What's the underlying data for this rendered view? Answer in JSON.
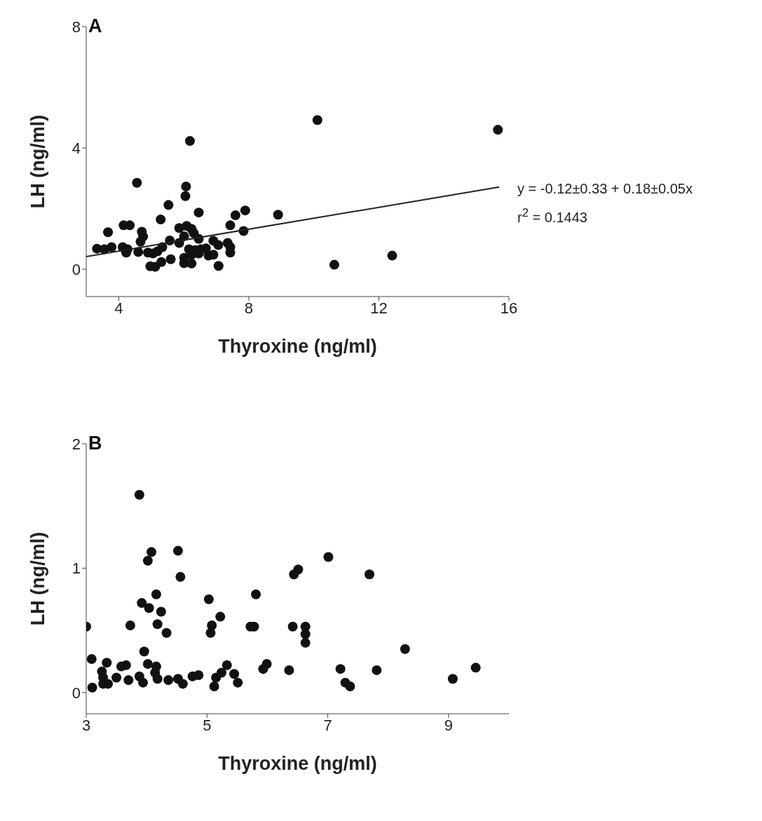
{
  "chart_data": [
    {
      "type": "scatter",
      "title": "A",
      "xlabel": "Thyroxine (ng/ml)",
      "ylabel": "LH (ng/ml)",
      "xlim": [
        3,
        16
      ],
      "ylim": [
        -0.9,
        8
      ],
      "xticks": [
        4,
        8,
        12,
        16
      ],
      "yticks": [
        0,
        4,
        8
      ],
      "grid": false,
      "marker": "circle",
      "annotations": [
        "y = -0.12±0.33 + 0.18±0.05x",
        "r$^{2}$ = 0.1443"
      ],
      "series": [
        {
          "color": "#111111",
          "x": [
            4.56,
            6.07,
            6.05,
            5.53,
            6.46,
            7.59,
            7.89,
            8.9,
            5.29,
            4.15,
            4.34,
            3.67,
            4.71,
            7.43,
            7.84,
            5.86,
            6.09,
            6.24,
            6.31,
            6.01,
            4.75,
            5.57,
            6.46,
            4.67,
            3.33,
            3.56,
            3.78,
            4.12,
            4.27,
            4.23,
            4.6,
            4.9,
            5.05,
            5.19,
            5.34,
            5.86,
            6.91,
            7.06,
            7.35,
            7.43,
            6.16,
            6.35,
            6.53,
            6.68,
            6.24,
            6.46,
            6.76,
            6.91,
            7.43,
            5.6,
            6.01,
            4.97,
            5.12,
            5.31,
            6.01,
            6.24,
            7.07,
            10.11,
            15.66,
            10.63,
            12.41,
            6.19
          ],
          "values": [
            2.85,
            2.73,
            2.41,
            2.12,
            1.87,
            1.78,
            1.94,
            1.8,
            1.64,
            1.45,
            1.45,
            1.22,
            1.24,
            1.45,
            1.26,
            1.36,
            1.43,
            1.33,
            1.19,
            1.09,
            1.08,
            0.95,
            1.0,
            0.91,
            0.68,
            0.66,
            0.73,
            0.73,
            0.66,
            0.55,
            0.57,
            0.55,
            0.52,
            0.59,
            0.73,
            0.87,
            0.94,
            0.8,
            0.87,
            0.73,
            0.66,
            0.63,
            0.66,
            0.69,
            0.48,
            0.52,
            0.45,
            0.48,
            0.55,
            0.33,
            0.38,
            0.1,
            0.08,
            0.24,
            0.2,
            0.19,
            0.11,
            4.92,
            4.6,
            0.15,
            0.45,
            4.23
          ]
        },
        {
          "type": "line",
          "marker": "none",
          "color": "#222222",
          "x": [
            3,
            15.7
          ],
          "values": [
            0.42,
            2.71
          ]
        }
      ]
    },
    {
      "type": "scatter",
      "title": "B",
      "xlabel": "Thyroxine (ng/ml)",
      "ylabel": "LH (ng/ml)",
      "xlim": [
        3,
        10
      ],
      "ylim": [
        -0.17,
        2
      ],
      "xticks": [
        3,
        5,
        7,
        9
      ],
      "yticks": [
        0,
        1,
        2
      ],
      "grid": false,
      "marker": "circle",
      "series": [
        {
          "color": "#111111",
          "x": [
            3.88,
            4.08,
            4.02,
            4.52,
            4.56,
            4.16,
            5.03,
            5.81,
            3.92,
            4.04,
            4.24,
            5.22,
            3.0,
            3.73,
            4.18,
            4.33,
            5.08,
            5.06,
            5.72,
            5.78,
            3.96,
            3.09,
            3.34,
            3.58,
            3.66,
            3.26,
            3.28,
            3.36,
            3.28,
            3.5,
            3.7,
            3.88,
            3.94,
            4.02,
            4.16,
            4.14,
            4.18,
            4.36,
            4.52,
            4.6,
            4.76,
            4.86,
            3.1,
            5.15,
            5.12,
            5.24,
            5.33,
            5.45,
            5.51,
            7.01,
            6.51,
            6.44,
            7.69,
            6.42,
            6.63,
            6.63,
            6.63,
            8.28,
            5.99,
            5.93,
            6.36,
            7.21,
            7.29,
            7.37,
            7.81,
            9.07,
            9.45
          ],
          "values": [
            1.59,
            1.13,
            1.06,
            1.14,
            0.93,
            0.79,
            0.75,
            0.79,
            0.72,
            0.68,
            0.65,
            0.61,
            0.53,
            0.54,
            0.55,
            0.48,
            0.54,
            0.48,
            0.53,
            0.53,
            0.33,
            0.27,
            0.24,
            0.21,
            0.22,
            0.17,
            0.12,
            0.07,
            0.07,
            0.12,
            0.1,
            0.13,
            0.08,
            0.23,
            0.21,
            0.16,
            0.11,
            0.1,
            0.11,
            0.07,
            0.13,
            0.14,
            0.04,
            0.12,
            0.05,
            0.16,
            0.22,
            0.15,
            0.08,
            1.09,
            0.99,
            0.95,
            0.95,
            0.53,
            0.53,
            0.47,
            0.4,
            0.35,
            0.23,
            0.19,
            0.18,
            0.19,
            0.08,
            0.05,
            0.18,
            0.11,
            0.2
          ]
        }
      ]
    }
  ]
}
